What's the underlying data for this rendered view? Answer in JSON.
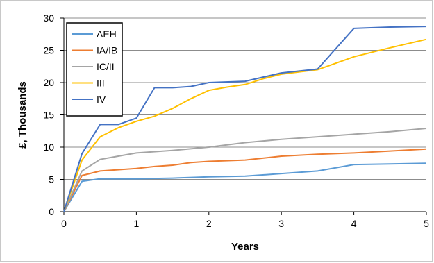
{
  "chart_data": {
    "type": "line",
    "title": "",
    "xlabel": "Years",
    "ylabel": "£, Thousands",
    "xlim": [
      0,
      5
    ],
    "ylim": [
      0,
      30
    ],
    "x_ticks": [
      "0",
      "1",
      "2",
      "3",
      "4",
      "5"
    ],
    "y_ticks": [
      "0",
      "5",
      "10",
      "15",
      "20",
      "25",
      "30"
    ],
    "grid": "horizontal",
    "legend_position": "top-left",
    "series": [
      {
        "name": "AEH",
        "color": "#5b9bd5",
        "x": [
          0,
          0.25,
          0.5,
          1,
          1.5,
          2,
          2.5,
          3,
          3.5,
          4,
          4.5,
          5
        ],
        "y": [
          0,
          4.7,
          5.1,
          5.1,
          5.2,
          5.4,
          5.5,
          5.9,
          6.3,
          7.3,
          7.4,
          7.5
        ]
      },
      {
        "name": "IA/IB",
        "color": "#ed7d31",
        "x": [
          0,
          0.25,
          0.5,
          1,
          1.25,
          1.5,
          1.75,
          2,
          2.5,
          3,
          3.5,
          4,
          4.5,
          5
        ],
        "y": [
          0,
          5.6,
          6.3,
          6.7,
          7.0,
          7.2,
          7.6,
          7.8,
          8.0,
          8.6,
          8.9,
          9.1,
          9.4,
          9.7
        ]
      },
      {
        "name": "IC/II",
        "color": "#a5a5a5",
        "x": [
          0,
          0.25,
          0.5,
          0.75,
          1,
          1.5,
          2,
          2.5,
          3,
          3.5,
          4,
          4.5,
          5
        ],
        "y": [
          0,
          6.3,
          8.1,
          8.6,
          9.1,
          9.5,
          10.0,
          10.7,
          11.2,
          11.6,
          12.0,
          12.4,
          12.9
        ]
      },
      {
        "name": "III",
        "color": "#ffc000",
        "x": [
          0,
          0.25,
          0.5,
          0.75,
          1,
          1.25,
          1.5,
          1.75,
          2,
          2.25,
          2.5,
          2.75,
          3,
          3.5,
          4,
          4.5,
          5
        ],
        "y": [
          0,
          8.0,
          11.6,
          13.0,
          14.0,
          14.8,
          16.0,
          17.5,
          18.8,
          19.3,
          19.7,
          20.6,
          21.3,
          22.0,
          24.0,
          25.4,
          26.7
        ]
      },
      {
        "name": "IV",
        "color": "#4472c4",
        "x": [
          0,
          0.25,
          0.5,
          0.75,
          1,
          1.25,
          1.5,
          1.75,
          2,
          2.5,
          3,
          3.5,
          4,
          4.5,
          5
        ],
        "y": [
          0,
          9.0,
          13.5,
          13.5,
          14.5,
          19.2,
          19.2,
          19.4,
          20.0,
          20.2,
          21.5,
          22.1,
          28.4,
          28.6,
          28.7
        ]
      }
    ]
  }
}
